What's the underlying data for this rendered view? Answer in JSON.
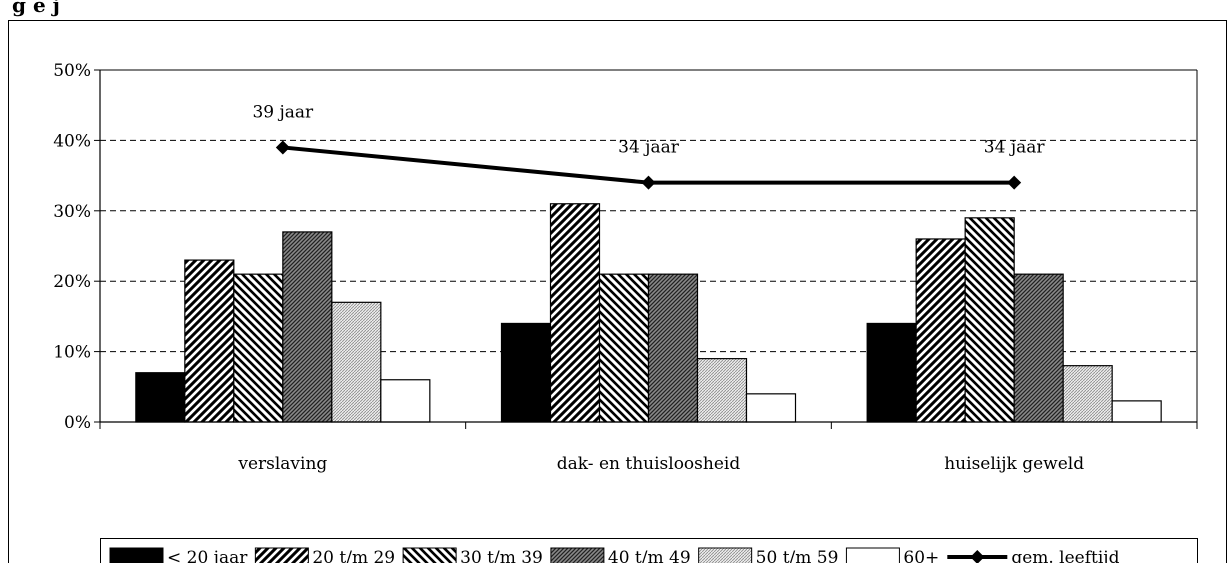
{
  "header_fragment": "g    e              j",
  "chart_data": {
    "type": "bar",
    "categories": [
      "verslaving",
      "dak- en thuisloosheid",
      "huiselijk geweld"
    ],
    "series": [
      {
        "name": "< 20 jaar",
        "pattern": "solid-black",
        "values": [
          7,
          14,
          14
        ]
      },
      {
        "name": "20 t/m 29",
        "pattern": "diag-right",
        "values": [
          23,
          31,
          26
        ]
      },
      {
        "name": "30 t/m 39",
        "pattern": "diag-left",
        "values": [
          21,
          21,
          29
        ]
      },
      {
        "name": "40 t/m 49",
        "pattern": "dense-dark",
        "values": [
          27,
          21,
          21
        ]
      },
      {
        "name": "50 t/m 59",
        "pattern": "light-dotted",
        "values": [
          17,
          9,
          8
        ]
      },
      {
        "name": "60+",
        "pattern": "white",
        "values": [
          6,
          4,
          3
        ]
      }
    ],
    "line_series": {
      "name": "gem. leeftijd",
      "values": [
        39,
        34,
        34
      ],
      "labels": [
        "39 jaar",
        "34 jaar",
        "34 jaar"
      ]
    },
    "ylim": [
      0,
      50
    ],
    "yticks": [
      "0%",
      "10%",
      "20%",
      "30%",
      "40%",
      "50%"
    ],
    "grid": "dashed-horizontal",
    "legend_position": "bottom",
    "title": "",
    "xlabel": "",
    "ylabel": ""
  }
}
